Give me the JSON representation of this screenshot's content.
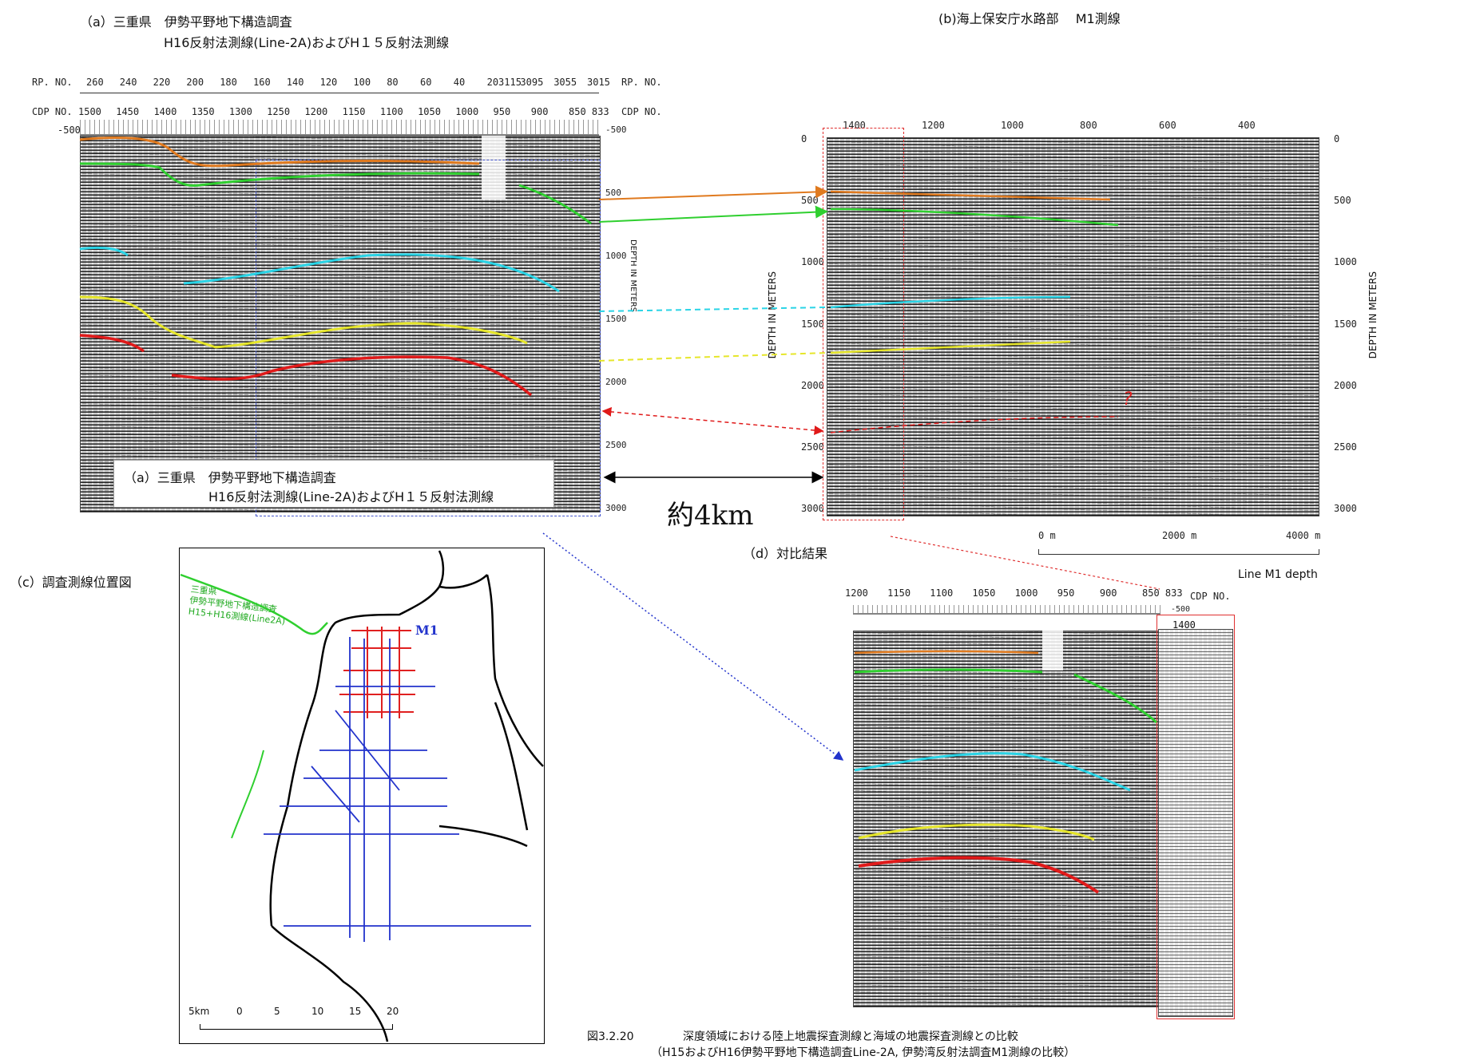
{
  "panel_a": {
    "title_line1": "（a）三重県　伊勢平野地下構造調査",
    "title_line2": "H16反射法測線(Line-2A)およびH１５反射法測線",
    "rp_label": "RP. NO.",
    "cdp_label": "CDP NO.",
    "rp_ticks": [
      "260",
      "240",
      "220",
      "200",
      "180",
      "160",
      "140",
      "120",
      "100",
      "80",
      "60",
      "40",
      "203115",
      "3095",
      "3055",
      "3015"
    ],
    "cdp_ticks": [
      "1500",
      "1450",
      "1400",
      "1350",
      "1300",
      "1250",
      "1200",
      "1150",
      "1100",
      "1050",
      "1000",
      "950",
      "900",
      "850 833"
    ],
    "depth_ticks": [
      "-500",
      "500",
      "1000",
      "1500",
      "2000",
      "2500",
      "3000"
    ],
    "depth_axis_label": "DEPTH IN METERS",
    "left_neg": "-500"
  },
  "inset_a": {
    "line1": "（a）三重県　伊勢平野地下構造調査",
    "line2": "H16反射法測線(Line-2A)およびH１５反射法測線"
  },
  "distance_label": "約4km",
  "panel_b": {
    "title": "(b)海上保安庁水路部　 M1測線",
    "top_ticks": [
      "1400",
      "1200",
      "1000",
      "800",
      "600",
      "400"
    ],
    "depth_ticks": [
      "0",
      "500",
      "1000",
      "1500",
      "2000",
      "2500",
      "3000"
    ],
    "depth_axis_label": "DEPTH IN METERS",
    "scale_labels": [
      "0  m",
      "2000  m",
      "4000  m"
    ],
    "line_label": "Line  M1    depth",
    "question": "?"
  },
  "panel_c": {
    "title": "（c）調査測線位置図",
    "m1_label": "M1",
    "green_label": "三重県\n伊勢平野地下構造調査\nH15+H16測線(Line2A)",
    "scale_km": "5km",
    "scale_ticks": [
      "0",
      "5",
      "10",
      "15",
      "20"
    ]
  },
  "panel_d": {
    "title": "（d）対比結果",
    "top_ticks": [
      "1200",
      "1150",
      "1100",
      "1050",
      "1000",
      "950",
      "900",
      "850 833"
    ],
    "cdp_label": "CDP NO.",
    "neg": "-500",
    "inset_label": "1400"
  },
  "caption": {
    "fig_no": "図3.2.20",
    "line1": "深度領域における陸上地震探査測線と海域の地震探査測線との比較",
    "line2": "（H15およびH16伊勢平野地下構造調査Line-2A, 伊勢湾反射法調査M1測線の比較）"
  },
  "colors": {
    "orange": "#e07a1f",
    "green": "#2fcf2f",
    "cyan": "#2ad4e6",
    "yellow": "#e6e62a",
    "red": "#e01a1a",
    "blue_line": "#2233cc",
    "red_line": "#e02020"
  }
}
